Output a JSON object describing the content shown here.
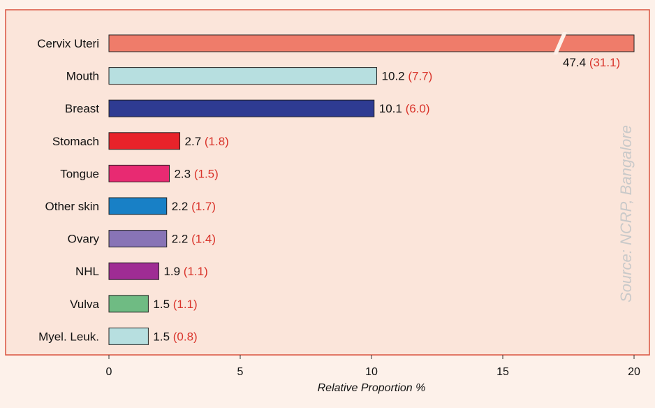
{
  "chart_data": {
    "type": "bar",
    "orientation": "horizontal",
    "categories": [
      "Cervix Uteri",
      "Mouth",
      "Breast",
      "Stomach",
      "Tongue",
      "Other skin",
      "Ovary",
      "NHL",
      "Vulva",
      "Myel. Leuk."
    ],
    "values": [
      47.4,
      10.2,
      10.1,
      2.7,
      2.3,
      2.2,
      2.2,
      1.9,
      1.5,
      1.5
    ],
    "secondary_values": [
      31.1,
      7.7,
      6.0,
      1.8,
      1.5,
      1.7,
      1.4,
      1.1,
      1.1,
      0.8
    ],
    "value_labels": [
      "47.4",
      "10.2",
      "10.1",
      "2.7",
      "2.3",
      "2.2",
      "2.2",
      "1.9",
      "1.5",
      "1.5"
    ],
    "secondary_labels": [
      "(31.1)",
      "(7.7)",
      "(6.0)",
      "(1.8)",
      "(1.5)",
      "(1.7)",
      "(1.4)",
      "(1.1)",
      "(1.1)",
      "(0.8)"
    ],
    "colors": [
      "#ef7c6a",
      "#b7dfe0",
      "#2e3b92",
      "#e8232a",
      "#e82a72",
      "#1880c6",
      "#8874b6",
      "#9f2c94",
      "#6fbb83",
      "#b7dfe0"
    ],
    "xlim": [
      0,
      20
    ],
    "xticks": [
      "0",
      "5",
      "10",
      "15",
      "20"
    ],
    "xlabel": "Relative Proportion %",
    "axis_break_on_first_bar": true,
    "annotation": "Source: NCRP, Bangalore"
  },
  "colors": {
    "page_background": "#fdf1ea",
    "plot_background": "#fbe5da",
    "plot_border": "#d9533f",
    "secondary_value_text": "#d9342b"
  }
}
